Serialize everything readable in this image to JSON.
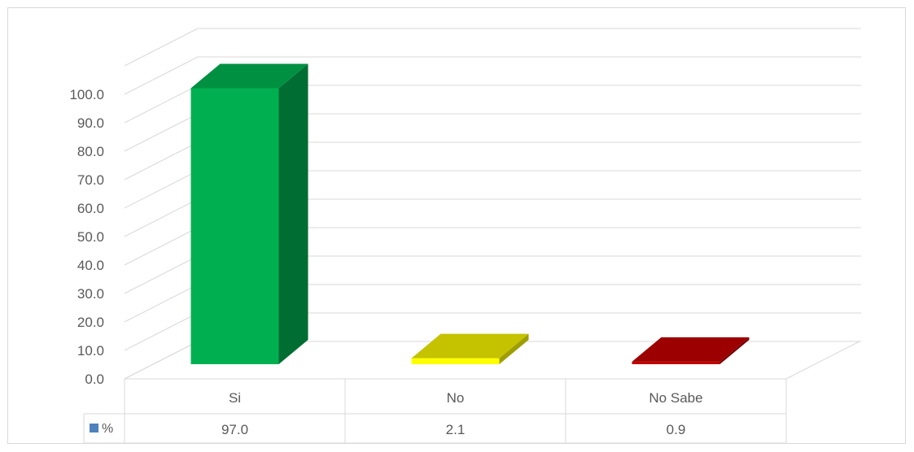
{
  "chart_data": {
    "type": "bar",
    "style": "3d",
    "categories": [
      "Si",
      "No",
      "No Sabe"
    ],
    "series": [
      {
        "name": "%",
        "values": [
          97.0,
          2.1,
          0.9
        ],
        "value_labels": [
          "97.0",
          "2.1",
          "0.9"
        ]
      }
    ],
    "bar_colors": [
      "#00b050",
      "#ffff00",
      "#c00000"
    ],
    "legend_key_color": "#4f81bd",
    "ylim": [
      0,
      100
    ],
    "yticks": [
      0,
      10,
      20,
      30,
      40,
      50,
      60,
      70,
      80,
      90,
      100
    ],
    "ytick_labels": [
      "0.0",
      "10.0",
      "20.0",
      "30.0",
      "40.0",
      "50.0",
      "60.0",
      "70.0",
      "80.0",
      "90.0",
      "100.0"
    ],
    "grid": true,
    "data_table": true
  }
}
